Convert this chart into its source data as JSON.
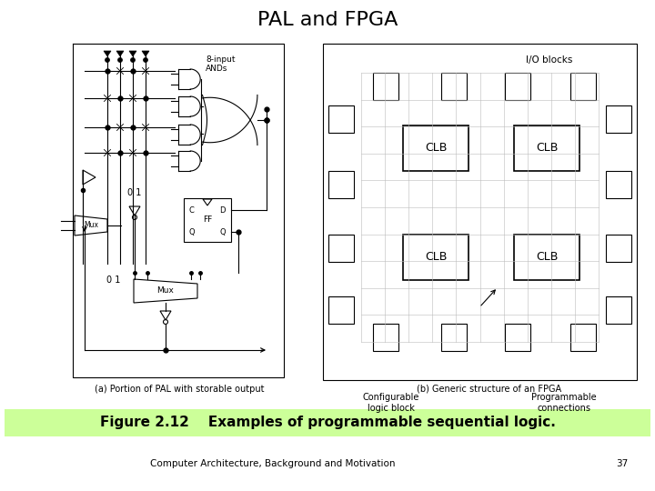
{
  "title": "PAL and FPGA",
  "title_fontsize": 16,
  "fig_caption": "Figure 2.12    Examples of programmable sequential logic.",
  "caption_bg": "#ccff99",
  "footer_text": "Computer Architecture, Background and Motivation",
  "footer_page": "37",
  "sub_caption_left": "(a) Portion of PAL with storable output",
  "sub_caption_right": "(b) Generic structure of an FPGA",
  "bg_color": "#ffffff",
  "label_8input": "8-input",
  "label_ANDs": "ANDs",
  "label_IO_blocks": "I/O blocks",
  "label_CLB": "CLB",
  "label_Mux": "Mux",
  "label_01_top": "0 1",
  "label_01_bot": "0 1",
  "label_FF": "FF",
  "label_C": "C",
  "label_D": "D",
  "label_Q": "Q",
  "label_Qbar": "Q",
  "label_config_logic": "Configurable\nlogic block",
  "label_prog_conn": "Programmable\nconnections"
}
